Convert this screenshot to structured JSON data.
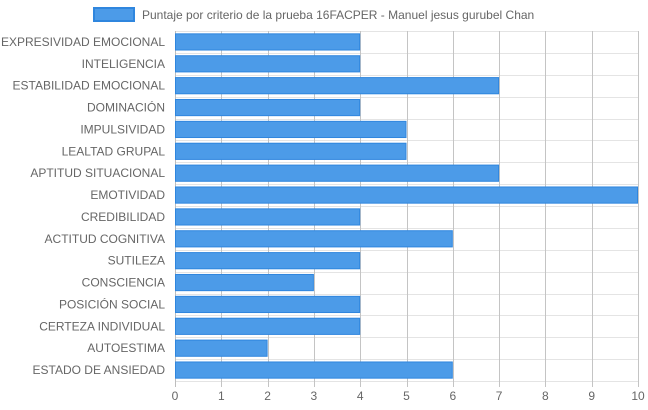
{
  "chart_data": {
    "type": "bar",
    "orientation": "horizontal",
    "categories": [
      "EXPRESIVIDAD EMOCIONAL",
      "INTELIGENCIA",
      "ESTABILIDAD EMOCIONAL",
      "DOMINACIÓN",
      "IMPULSIVIDAD",
      "LEALTAD GRUPAL",
      "APTITUD SITUACIONAL",
      "EMOTIVIDAD",
      "CREDIBILIDAD",
      "ACTITUD COGNITIVA",
      "SUTILEZA",
      "CONSCIENCIA",
      "POSICIÓN SOCIAL",
      "CERTEZA INDIVIDUAL",
      "AUTOESTIMA",
      "ESTADO DE ANSIEDAD"
    ],
    "series": [
      {
        "name": "Puntaje por criterio de la prueba 16FACPER - Manuel jesus gurubel Chan",
        "values": [
          4,
          4,
          7,
          4,
          5,
          5,
          7,
          10,
          4,
          6,
          4,
          3,
          4,
          4,
          2,
          6
        ],
        "color": "#4c9be8",
        "border_color": "#2f86de"
      }
    ],
    "xlim": [
      0,
      10
    ],
    "xticks": [
      "0",
      "1",
      "2",
      "3",
      "4",
      "5",
      "6",
      "7",
      "8",
      "9",
      "10"
    ],
    "grid": true,
    "legend_position": "top",
    "title": "",
    "xlabel": "",
    "ylabel": ""
  }
}
